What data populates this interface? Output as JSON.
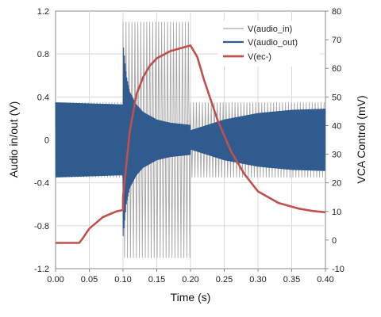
{
  "chart_data": {
    "type": "line",
    "xlabel": "Time (s)",
    "ylabel_left": "Audio in/out (V)",
    "ylabel_right": "VCA Control (mV)",
    "xlim": [
      0,
      0.4
    ],
    "ylim_left": [
      -1.2,
      1.2
    ],
    "ylim_right": [
      -10,
      80
    ],
    "x_ticks": [
      "0.00",
      "0.05",
      "0.10",
      "0.15",
      "0.20",
      "0.25",
      "0.30",
      "0.35",
      "0.40"
    ],
    "y_left_ticks": [
      "1.2",
      "0.8",
      "0.4",
      "0",
      "-0.4",
      "-0.8",
      "-1.2"
    ],
    "y_right_ticks": [
      "80",
      "70",
      "60",
      "50",
      "40",
      "30",
      "20",
      "10",
      "0",
      "-10"
    ],
    "legend_position": "top-right",
    "colors": {
      "audio_in": "#a6a6a6",
      "audio_out": "#2f5b8f",
      "ec": "#c0504d"
    },
    "series": [
      {
        "name": "V(audio_in)",
        "axis": "left",
        "style": "oscillation",
        "segments": [
          {
            "x": [
              0,
              0.1
            ],
            "amplitude": 0.35
          },
          {
            "x": [
              0.1,
              0.2
            ],
            "amplitude": 1.1
          },
          {
            "x": [
              0.2,
              0.4
            ],
            "amplitude": 0.35
          }
        ]
      },
      {
        "name": "V(audio_out)",
        "axis": "left",
        "style": "envelope",
        "x": [
          0,
          0.1,
          0.1,
          0.105,
          0.11,
          0.12,
          0.13,
          0.15,
          0.17,
          0.2,
          0.2,
          0.25,
          0.3,
          0.35,
          0.4
        ],
        "amplitude": [
          0.35,
          0.33,
          0.91,
          0.6,
          0.45,
          0.33,
          0.26,
          0.19,
          0.16,
          0.14,
          0.09,
          0.19,
          0.25,
          0.28,
          0.29
        ]
      },
      {
        "name": "V(ec-)",
        "axis": "right",
        "style": "line",
        "x": [
          0,
          0.035,
          0.04,
          0.05,
          0.07,
          0.09,
          0.1,
          0.1,
          0.11,
          0.12,
          0.13,
          0.14,
          0.15,
          0.17,
          0.2,
          0.2,
          0.21,
          0.22,
          0.24,
          0.26,
          0.28,
          0.3,
          0.33,
          0.36,
          0.38,
          0.4
        ],
        "y": [
          -1,
          -1,
          0.5,
          4,
          8,
          10,
          10.5,
          15,
          38,
          51,
          57,
          61,
          63.5,
          66,
          68,
          68,
          64,
          56,
          42,
          31,
          23,
          17,
          13,
          11,
          10.2,
          9.7
        ]
      }
    ]
  }
}
